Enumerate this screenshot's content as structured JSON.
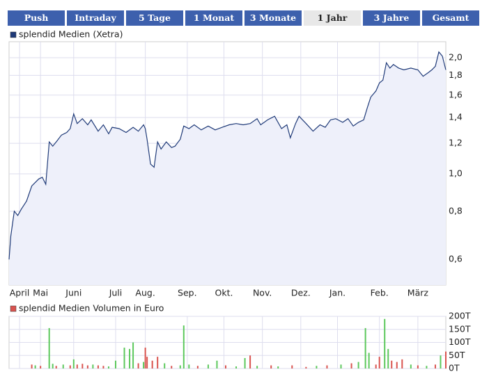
{
  "tabs": {
    "items": [
      "Push",
      "Intraday",
      "5 Tage",
      "1 Monat",
      "3 Monate",
      "1 Jahr",
      "3 Jahre",
      "Gesamt"
    ],
    "selected": 5
  },
  "chart_data": [
    {
      "type": "line",
      "area": true,
      "log_scale": true,
      "grid": true,
      "xlim": [
        0,
        250
      ],
      "ylim": [
        0.515,
        2.2
      ],
      "xticks": [
        {
          "value": 6,
          "label": "April"
        },
        {
          "value": 18,
          "label": "Mai"
        },
        {
          "value": 37,
          "label": "Juni"
        },
        {
          "value": 61,
          "label": "Juli"
        },
        {
          "value": 78,
          "label": "Aug."
        },
        {
          "value": 102,
          "label": "Sep."
        },
        {
          "value": 123,
          "label": "Okt."
        },
        {
          "value": 145,
          "label": "Nov."
        },
        {
          "value": 167,
          "label": "Dez."
        },
        {
          "value": 188,
          "label": "Jan."
        },
        {
          "value": 212,
          "label": "Feb."
        },
        {
          "value": 234,
          "label": "März"
        }
      ],
      "yticks": [
        {
          "value": 0.6,
          "label": "0,6"
        },
        {
          "value": 0.8,
          "label": "0,8"
        },
        {
          "value": 1.0,
          "label": "1,0"
        },
        {
          "value": 1.2,
          "label": "1,2"
        },
        {
          "value": 1.4,
          "label": "1,4"
        },
        {
          "value": 1.6,
          "label": "1,6"
        },
        {
          "value": 1.8,
          "label": "1,8"
        },
        {
          "value": 2.0,
          "label": "2,0"
        }
      ],
      "series": [
        {
          "name": "splendid Medien (Xetra)",
          "color": "#1f3a78",
          "fill": "#eef0fa",
          "x": [
            0,
            1,
            3,
            5,
            7,
            10,
            13,
            15,
            17,
            19,
            21,
            23,
            25,
            27,
            30,
            33,
            35,
            37,
            39,
            42,
            45,
            47,
            51,
            54,
            57,
            59,
            63,
            67,
            71,
            74,
            77,
            78,
            79,
            81,
            83,
            85,
            87,
            90,
            93,
            95,
            98,
            100,
            103,
            106,
            110,
            114,
            118,
            122,
            126,
            130,
            134,
            138,
            142,
            144,
            148,
            152,
            156,
            159,
            161,
            164,
            166,
            170,
            174,
            178,
            181,
            184,
            187,
            191,
            194,
            197,
            200,
            203,
            205,
            207,
            210,
            212,
            214,
            216,
            218,
            220,
            223,
            226,
            230,
            234,
            237,
            240,
            242,
            244,
            246,
            248,
            250
          ],
          "values": [
            0.6,
            0.69,
            0.8,
            0.78,
            0.81,
            0.85,
            0.93,
            0.95,
            0.97,
            0.98,
            0.94,
            1.21,
            1.18,
            1.21,
            1.26,
            1.28,
            1.31,
            1.43,
            1.35,
            1.39,
            1.34,
            1.38,
            1.29,
            1.34,
            1.27,
            1.32,
            1.31,
            1.28,
            1.32,
            1.29,
            1.34,
            1.31,
            1.23,
            1.06,
            1.04,
            1.21,
            1.16,
            1.21,
            1.17,
            1.18,
            1.23,
            1.33,
            1.31,
            1.34,
            1.3,
            1.33,
            1.3,
            1.32,
            1.34,
            1.35,
            1.34,
            1.35,
            1.39,
            1.34,
            1.38,
            1.41,
            1.31,
            1.34,
            1.24,
            1.35,
            1.41,
            1.35,
            1.29,
            1.34,
            1.32,
            1.38,
            1.39,
            1.36,
            1.39,
            1.33,
            1.36,
            1.38,
            1.48,
            1.58,
            1.64,
            1.72,
            1.75,
            1.94,
            1.88,
            1.92,
            1.88,
            1.86,
            1.88,
            1.86,
            1.79,
            1.83,
            1.86,
            1.9,
            2.07,
            2.02,
            1.86
          ]
        }
      ]
    },
    {
      "type": "bar",
      "grid": true,
      "xlim": [
        0,
        250
      ],
      "ylim": [
        0,
        200
      ],
      "yticks": [
        {
          "value": 0,
          "label": "0T"
        },
        {
          "value": 50,
          "label": "50T"
        },
        {
          "value": 100,
          "label": "100T"
        },
        {
          "value": 150,
          "label": "150T"
        },
        {
          "value": 200,
          "label": "200T"
        }
      ],
      "series": [
        {
          "name": "splendid Medien Volumen in Euro",
          "color": "#d9534f",
          "x": [
            13,
            15,
            18,
            23,
            25,
            27,
            31,
            35,
            37,
            39,
            42,
            45,
            48,
            51,
            54,
            57,
            61,
            66,
            69,
            71,
            74,
            77,
            78,
            79,
            82,
            85,
            89,
            93,
            98,
            100,
            103,
            108,
            114,
            119,
            124,
            130,
            135,
            138,
            142,
            150,
            154,
            162,
            170,
            176,
            182,
            190,
            196,
            200,
            204,
            206,
            210,
            212,
            215,
            217,
            219,
            222,
            225,
            230,
            234,
            239,
            244,
            247,
            250
          ],
          "values": [
            15,
            12,
            10,
            155,
            18,
            10,
            15,
            12,
            35,
            15,
            18,
            12,
            15,
            12,
            10,
            8,
            30,
            80,
            75,
            100,
            20,
            25,
            80,
            45,
            30,
            45,
            20,
            10,
            12,
            165,
            15,
            10,
            15,
            30,
            12,
            8,
            40,
            50,
            10,
            12,
            8,
            12,
            6,
            10,
            12,
            15,
            20,
            25,
            155,
            60,
            15,
            45,
            190,
            75,
            30,
            25,
            35,
            15,
            12,
            10,
            15,
            50,
            65
          ],
          "colors": [
            "#d9534f",
            "#5cc85c",
            "#d9534f",
            "#5cc85c",
            "#5cc85c",
            "#d9534f",
            "#5cc85c",
            "#d9534f",
            "#5cc85c",
            "#d9534f",
            "#d9534f",
            "#d9534f",
            "#5cc85c",
            "#d9534f",
            "#d9534f",
            "#5cc85c",
            "#5cc85c",
            "#5cc85c",
            "#5cc85c",
            "#5cc85c",
            "#d9534f",
            "#5cc85c",
            "#d9534f",
            "#d9534f",
            "#d9534f",
            "#d9534f",
            "#5cc85c",
            "#d9534f",
            "#5cc85c",
            "#5cc85c",
            "#5cc85c",
            "#d9534f",
            "#5cc85c",
            "#5cc85c",
            "#d9534f",
            "#5cc85c",
            "#5cc85c",
            "#d9534f",
            "#5cc85c",
            "#d9534f",
            "#5cc85c",
            "#d9534f",
            "#d9534f",
            "#5cc85c",
            "#d9534f",
            "#5cc85c",
            "#d9534f",
            "#5cc85c",
            "#5cc85c",
            "#5cc85c",
            "#d9534f",
            "#d9534f",
            "#5cc85c",
            "#5cc85c",
            "#d9534f",
            "#d9534f",
            "#d9534f",
            "#5cc85c",
            "#d9534f",
            "#5cc85c",
            "#d9534f",
            "#5cc85c",
            "#d9534f"
          ]
        }
      ]
    }
  ]
}
